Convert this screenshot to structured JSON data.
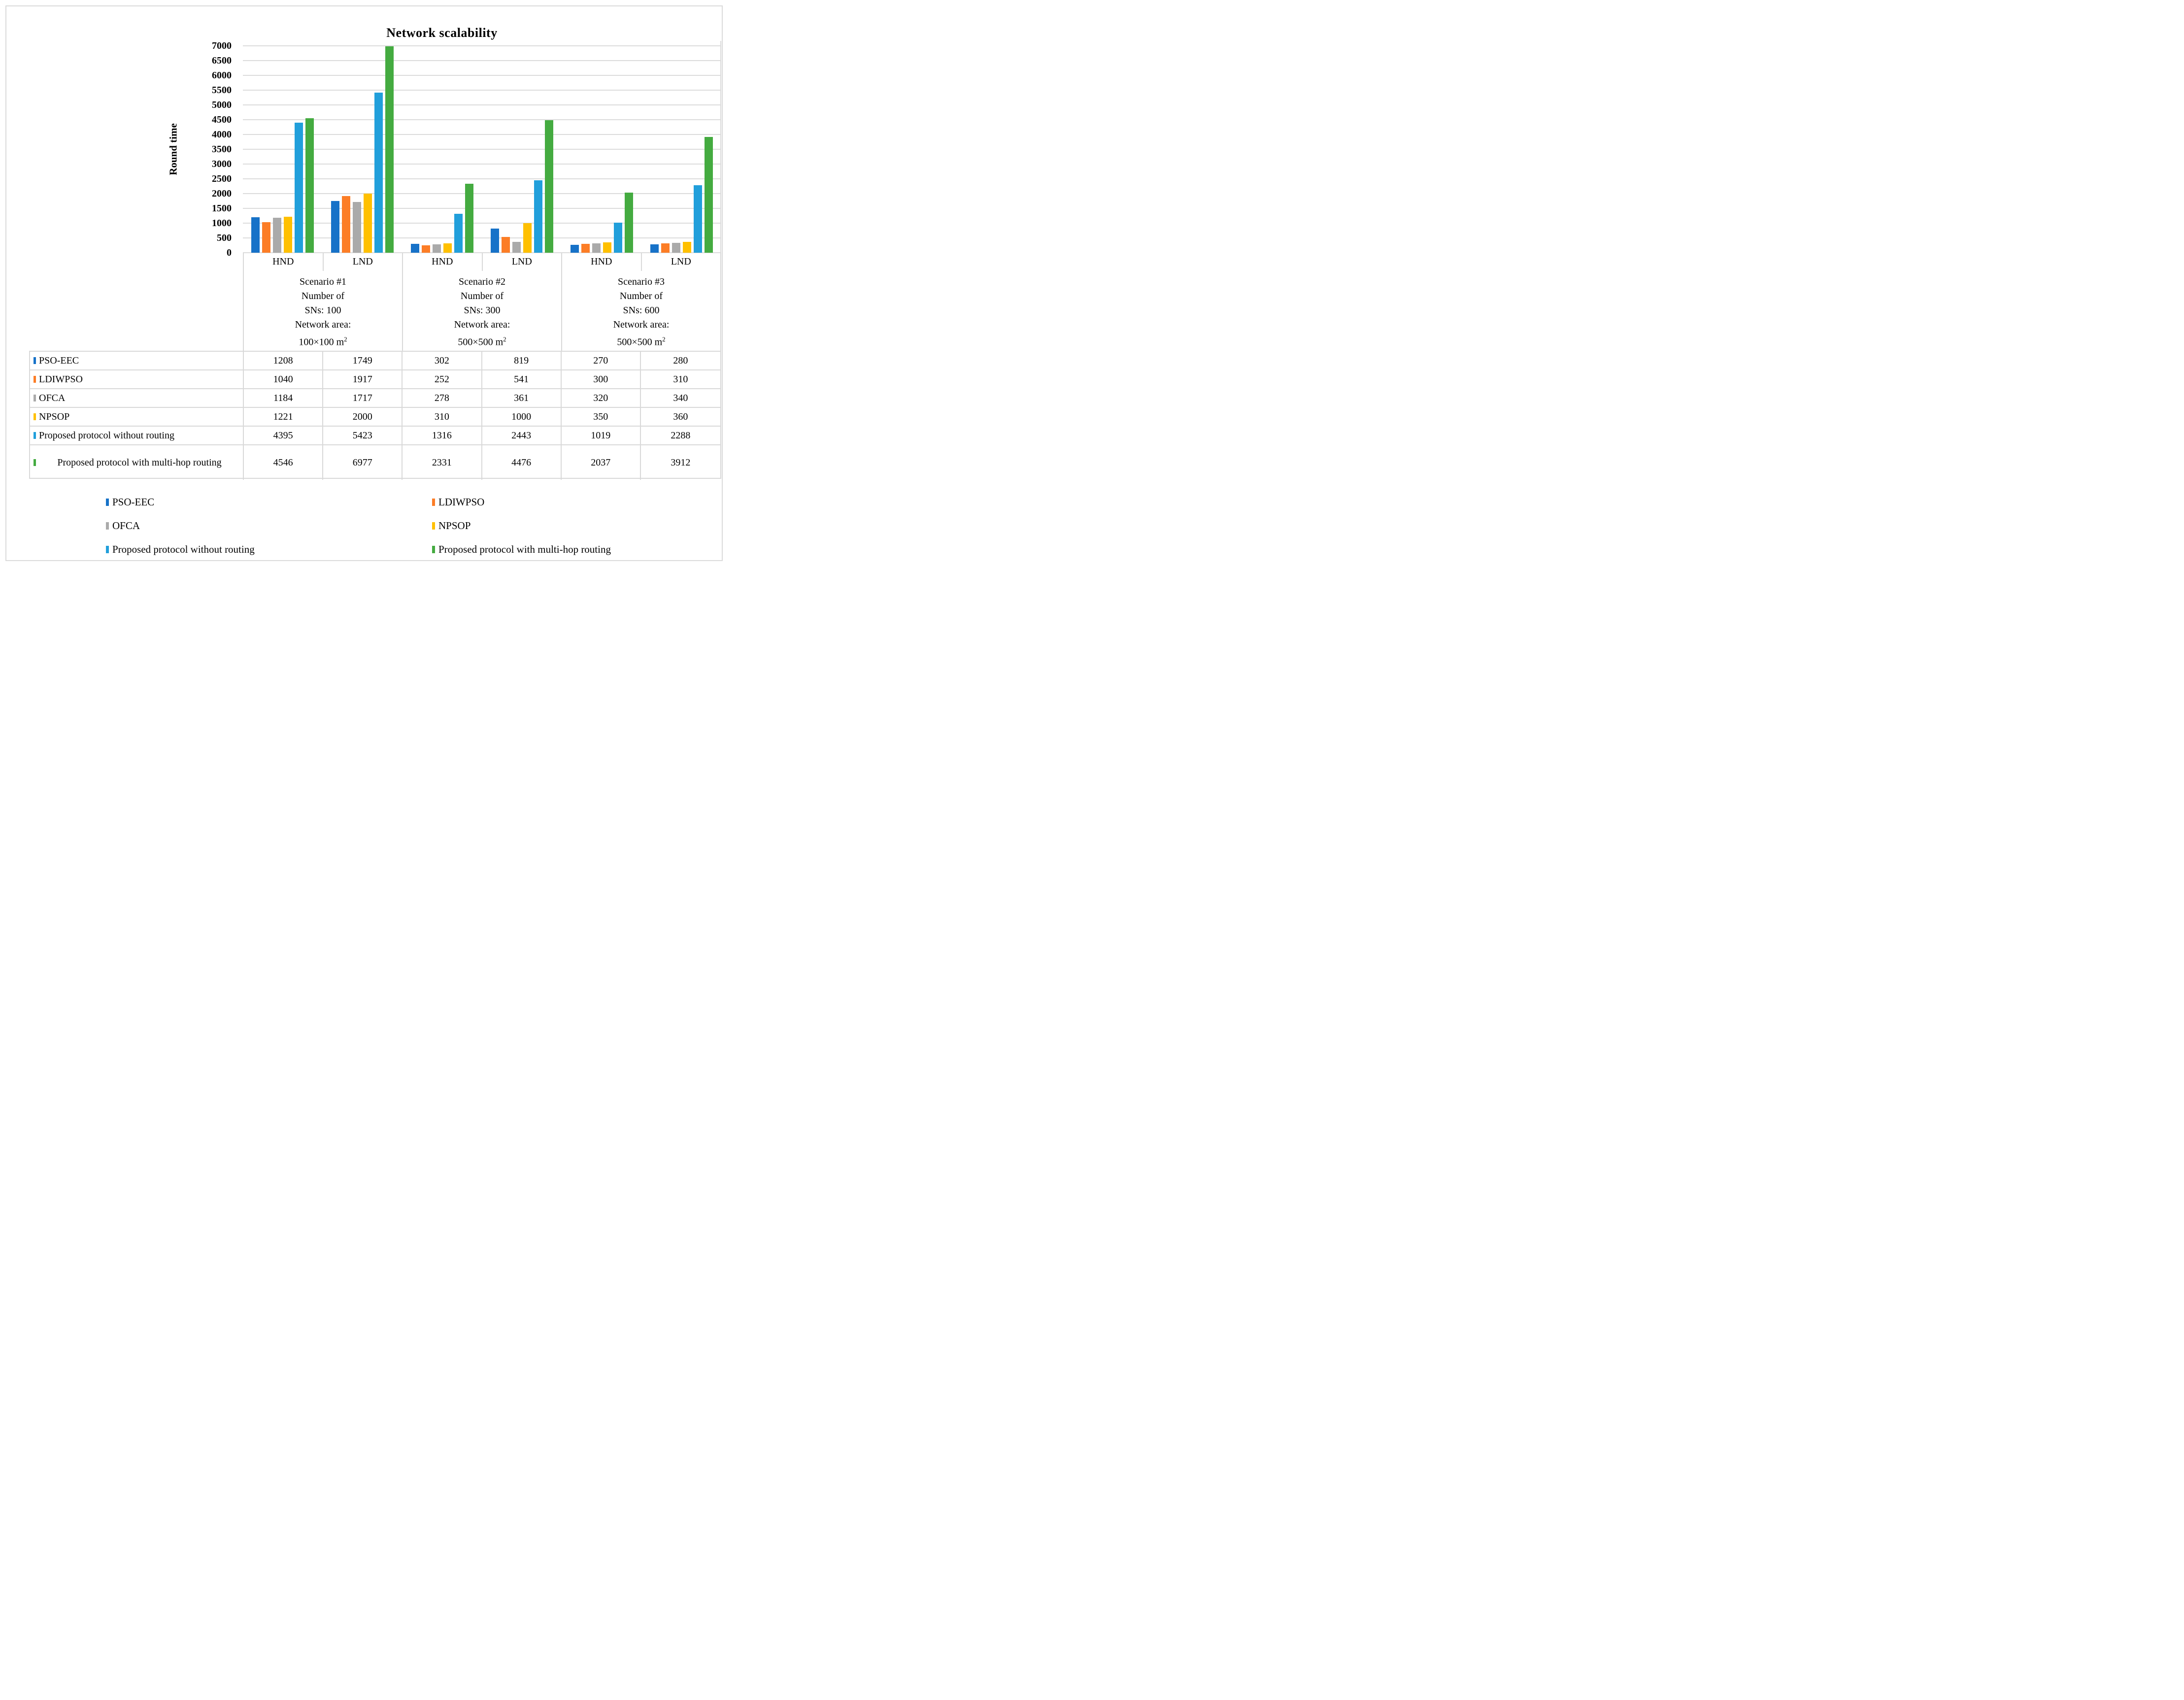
{
  "chart_data": {
    "type": "bar",
    "title": "Network scalability",
    "ylabel": "Round time",
    "xlabel": "",
    "ylim": [
      0,
      7000
    ],
    "ytick_step": 500,
    "grid": true,
    "legend_position": "bottom",
    "categories": [
      "HND",
      "LND",
      "HND",
      "LND",
      "HND",
      "LND"
    ],
    "scenarios": [
      {
        "lines": [
          "Scenario #1",
          "Number of",
          "SNs: 100",
          "Network area:",
          "100×100 m²"
        ]
      },
      {
        "lines": [
          "Scenario #2",
          "Number of",
          "SNs: 300",
          "Network area:",
          "500×500 m²"
        ]
      },
      {
        "lines": [
          "Scenario #3",
          "Number of",
          "SNs: 600",
          "Network area:",
          "500×500 m²"
        ]
      }
    ],
    "series": [
      {
        "name": "PSO-EEC",
        "color": "#1772C8",
        "values": [
          1208,
          1749,
          302,
          819,
          270,
          280
        ]
      },
      {
        "name": "LDIWPSO",
        "color": "#FC7D26",
        "values": [
          1040,
          1917,
          252,
          541,
          300,
          310
        ]
      },
      {
        "name": "OFCA",
        "color": "#AAAAAA",
        "values": [
          1184,
          1717,
          278,
          361,
          320,
          340
        ]
      },
      {
        "name": "NPSOP",
        "color": "#FFC000",
        "values": [
          1221,
          2000,
          310,
          1000,
          350,
          360
        ]
      },
      {
        "name": "Proposed protocol without routing",
        "color": "#219FDB",
        "values": [
          4395,
          5423,
          1316,
          2443,
          1019,
          2288
        ]
      },
      {
        "name": "Proposed protocol with multi-hop routing",
        "color": "#44AB40",
        "values": [
          4546,
          6977,
          2331,
          4476,
          2037,
          3912
        ]
      }
    ]
  },
  "colors": {
    "gridline": "#DCDCDC",
    "table_border": "#D9D9D9"
  }
}
